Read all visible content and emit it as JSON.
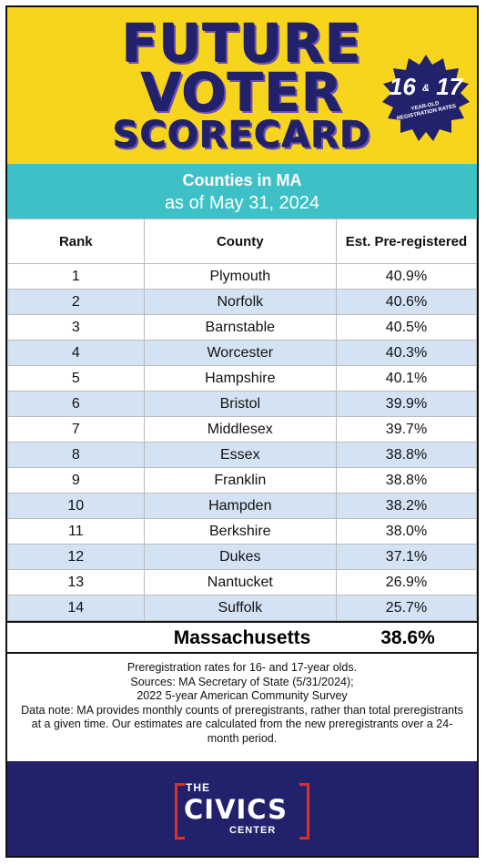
{
  "header": {
    "title_line1": "FUTURE",
    "title_line2": "VOTER",
    "title_line3": "SCORECARD",
    "badge_num1": "16",
    "badge_amp": "&",
    "badge_num2": "17",
    "badge_sub_line1": "YEAR-OLD",
    "badge_sub_line2": "REGISTRATION RATES"
  },
  "subhead": {
    "line1": "Counties in MA",
    "line2": "as of May 31, 2024"
  },
  "table": {
    "col_rank": "Rank",
    "col_county": "County",
    "col_rate": "Est. Pre-registered",
    "rows": [
      {
        "rank": "1",
        "county": "Plymouth",
        "rate": "40.9%"
      },
      {
        "rank": "2",
        "county": "Norfolk",
        "rate": "40.6%"
      },
      {
        "rank": "3",
        "county": "Barnstable",
        "rate": "40.5%"
      },
      {
        "rank": "4",
        "county": "Worcester",
        "rate": "40.3%"
      },
      {
        "rank": "5",
        "county": "Hampshire",
        "rate": "40.1%"
      },
      {
        "rank": "6",
        "county": "Bristol",
        "rate": "39.9%"
      },
      {
        "rank": "7",
        "county": "Middlesex",
        "rate": "39.7%"
      },
      {
        "rank": "8",
        "county": "Essex",
        "rate": "38.8%"
      },
      {
        "rank": "9",
        "county": "Franklin",
        "rate": "38.8%"
      },
      {
        "rank": "10",
        "county": "Hampden",
        "rate": "38.2%"
      },
      {
        "rank": "11",
        "county": "Berkshire",
        "rate": "38.0%"
      },
      {
        "rank": "12",
        "county": "Dukes",
        "rate": "37.1%"
      },
      {
        "rank": "13",
        "county": "Nantucket",
        "rate": "26.9%"
      },
      {
        "rank": "14",
        "county": "Suffolk",
        "rate": "25.7%"
      }
    ]
  },
  "total": {
    "state": "Massachusetts",
    "rate": "38.6%"
  },
  "notes": {
    "line1": "Preregistration rates for 16- and 17-year olds.",
    "line2": "Sources: MA Secretary of State (5/31/2024);",
    "line3": "2022 5-year American Community Survey",
    "line4": "Data note: MA provides monthly counts of preregistrants, rather than total preregistrants at a given time. Our estimates are calculated from the new preregistrants over a 24-month period."
  },
  "footer": {
    "logo_the": "THE",
    "logo_civics": "CIVICS",
    "logo_center": "CENTER"
  },
  "colors": {
    "header_yellow": "#f7d51d",
    "title_navy": "#22216b",
    "subhead_teal": "#3ec1c6",
    "row_alt_blue": "#d4e3f4",
    "logo_red": "#d9312b"
  }
}
